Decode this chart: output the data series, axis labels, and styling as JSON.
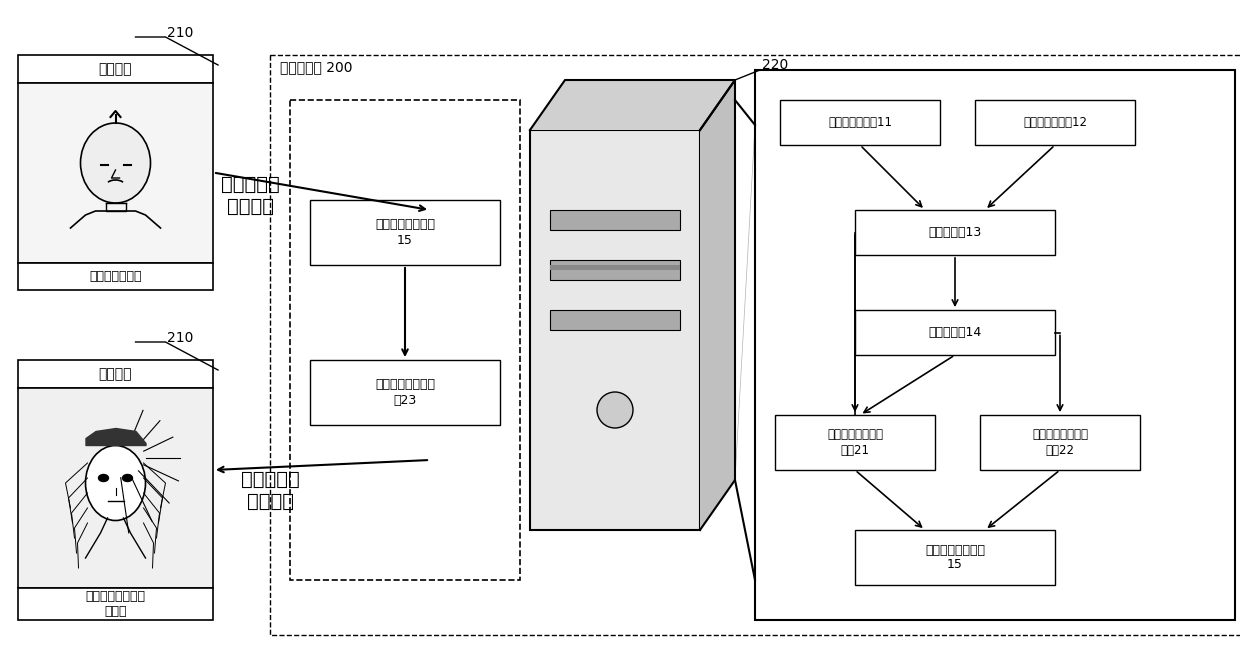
{
  "bg_color": "#ffffff",
  "title_computer": "计算机系统 200",
  "label_210": "210",
  "label_220": "220",
  "box_top_label": "角色设置",
  "box_top_sublabel": "请拍摄您的正脸",
  "box_bottom_label": "角色设置",
  "box_bottom_sublabel": "已根据您的形象生\n成角色",
  "arrow_top_text": "低精度人脸\n采集数据",
  "arrow_bottom_text": "高精度人脸\n生成数据",
  "inner_box1_text": "高精度人脸形状库\n15",
  "inner_box2_text": "高精度人脸生成数\n据23",
  "flow_node1_left": "高精度人脸数据11",
  "flow_node1_right": "低精度人脸数据12",
  "flow_node2": "低频脸型基13",
  "flow_node3": "高频脸型基14",
  "flow_node4_left": "低频脸型基的误差\n数据21",
  "flow_node4_right": "高频脸型基的误差\n数据22",
  "flow_node5": "高精度人脸形状库\n15"
}
